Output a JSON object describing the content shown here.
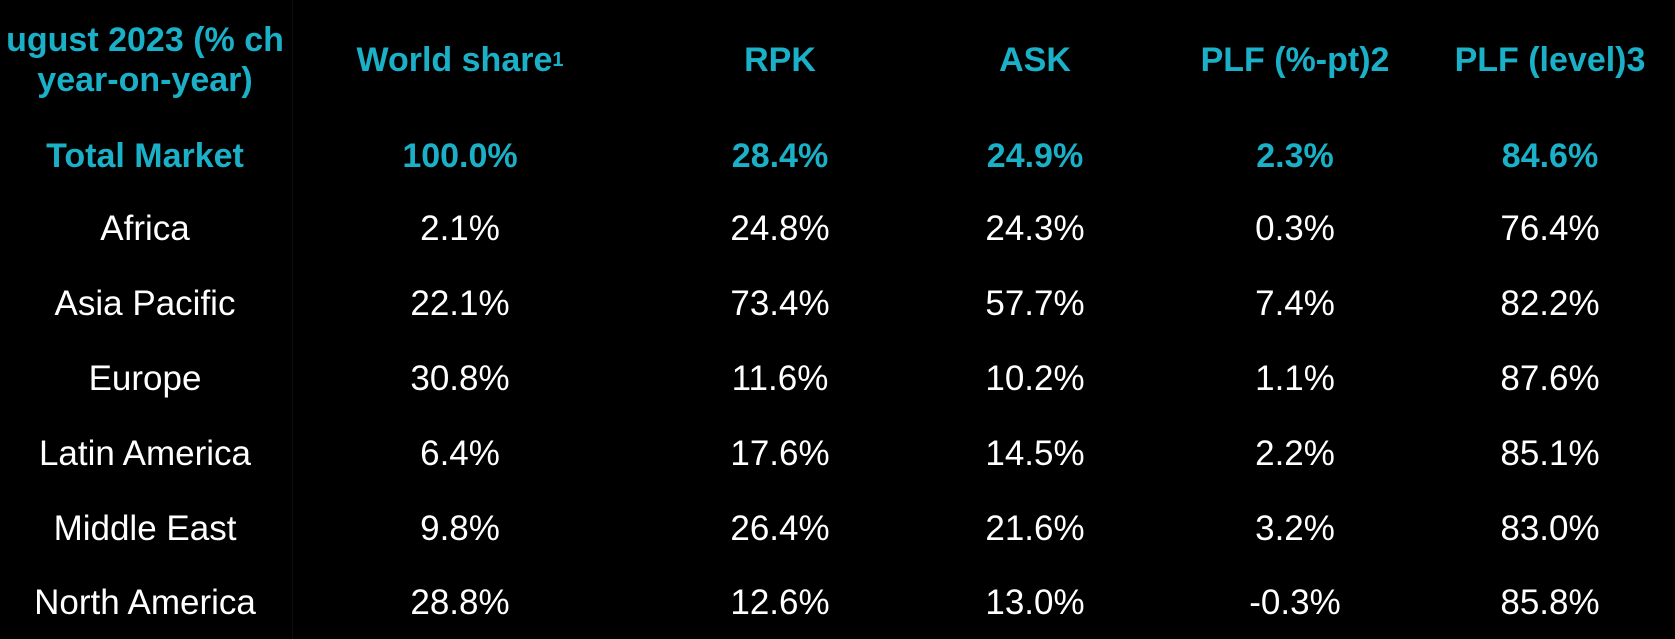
{
  "chart_data": {
    "type": "table",
    "columns": [
      {
        "label": "ugust 2023 (% ch",
        "label_line2": "year-on-year)"
      },
      {
        "label": "World share",
        "superscript": "1"
      },
      {
        "label": "RPK"
      },
      {
        "label": "ASK"
      },
      {
        "label": "PLF (%-pt)2"
      },
      {
        "label": "PLF (level)3"
      }
    ],
    "total_row": {
      "region": "Total Market",
      "values": [
        "100.0%",
        "28.4%",
        "24.9%",
        "2.3%",
        "84.6%"
      ]
    },
    "rows": [
      {
        "region": "Africa",
        "values": [
          "2.1%",
          "24.8%",
          "24.3%",
          "0.3%",
          "76.4%"
        ]
      },
      {
        "region": "Asia Pacific",
        "values": [
          "22.1%",
          "73.4%",
          "57.7%",
          "7.4%",
          "82.2%"
        ]
      },
      {
        "region": "Europe",
        "values": [
          "30.8%",
          "11.6%",
          "10.2%",
          "1.1%",
          "87.6%"
        ]
      },
      {
        "region": "Latin America",
        "values": [
          "6.4%",
          "17.6%",
          "14.5%",
          "2.2%",
          "85.1%"
        ]
      },
      {
        "region": "Middle East",
        "values": [
          "9.8%",
          "26.4%",
          "21.6%",
          "3.2%",
          "83.0%"
        ]
      },
      {
        "region": "North America",
        "values": [
          "28.8%",
          "12.6%",
          "13.0%",
          "-0.3%",
          "85.8%"
        ]
      }
    ]
  },
  "colors": {
    "background": "#000000",
    "accent": "#1ab0c8",
    "text": "#ffffff"
  }
}
